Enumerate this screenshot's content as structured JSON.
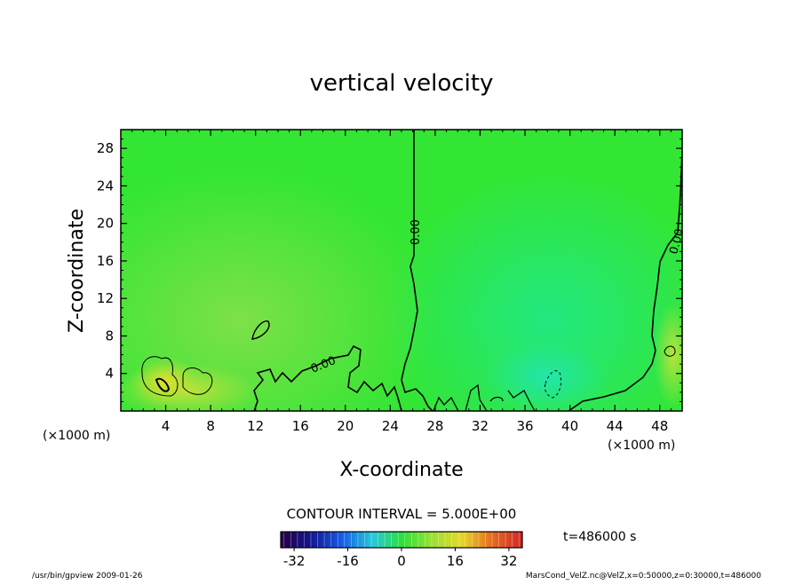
{
  "chart_data": {
    "type": "heatmap",
    "title": "vertical velocity",
    "xlabel": "X-coordinate",
    "ylabel": "Z-coordinate",
    "x_unit_label": "(×1000 m)",
    "y_unit_label": "(×1000 m)",
    "x_range": [
      0,
      50
    ],
    "y_range": [
      0,
      30
    ],
    "x_ticks": [
      4,
      8,
      12,
      16,
      20,
      24,
      28,
      32,
      36,
      40,
      44,
      48
    ],
    "y_ticks": [
      4,
      8,
      12,
      16,
      20,
      24,
      28
    ],
    "contour_interval_text": "CONTOUR INTERVAL = 5.000E+00",
    "contour_labels": [
      "0.00",
      "0.00",
      "0.00"
    ],
    "zero_line_x": 26,
    "colorbar": {
      "ticks": [
        -32,
        -16,
        0,
        16,
        32
      ],
      "range": [
        -36,
        36
      ]
    },
    "field_colors": {
      "background": "#33e633",
      "left_region": "#7fe24a",
      "right_region": "#26e878",
      "warm_spot": "#e0e02a"
    }
  },
  "footer": {
    "time_label": "t=486000 s",
    "program": "/usr/bin/gpview   2009-01-26",
    "source": "MarsCond_VelZ.nc@VelZ,x=0:50000,z=0:30000,t=486000"
  }
}
